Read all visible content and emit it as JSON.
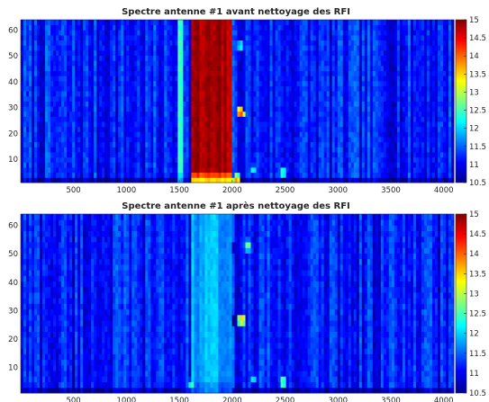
{
  "chart_data": [
    {
      "type": "heatmap",
      "title": "Spectre antenne #1  avant nettoyage des RFI",
      "xlabel": "",
      "ylabel": "",
      "xlim": [
        1,
        4096
      ],
      "ylim": [
        1,
        64
      ],
      "x_ticks": [
        500,
        1000,
        1500,
        2000,
        2500,
        3000,
        3500,
        4000
      ],
      "y_ticks": [
        10,
        20,
        30,
        40,
        50,
        60
      ],
      "colorbar": {
        "colormap": "jet",
        "range": [
          10.5,
          15
        ],
        "ticks": [
          10.5,
          11,
          11.5,
          12,
          12.5,
          13,
          13.5,
          14,
          14.5,
          15
        ]
      },
      "features": [
        {
          "name": "band",
          "x_range": [
            1620,
            1990
          ],
          "level": 14.8
        },
        {
          "name": "band",
          "x_range": [
            1480,
            1540
          ],
          "level": 12.6
        },
        {
          "name": "spot",
          "x": 2080,
          "y": 28,
          "level": 14.2
        },
        {
          "name": "spot",
          "x": 2080,
          "y": 54,
          "level": 12.4
        },
        {
          "name": "spot",
          "x": 2480,
          "y": 5,
          "level": 12.6
        },
        {
          "name": "spot",
          "x": 2040,
          "y": 2,
          "level": 13.8
        },
        {
          "name": "spot",
          "x": 2200,
          "y": 6,
          "level": 12.3
        }
      ]
    },
    {
      "type": "heatmap",
      "title": "Spectre antenne #1  après nettoyage des RFI",
      "xlabel": "",
      "ylabel": "",
      "xlim": [
        1,
        4096
      ],
      "ylim": [
        1,
        64
      ],
      "x_ticks": [
        500,
        1000,
        1500,
        2000,
        2500,
        3000,
        3500,
        4000
      ],
      "y_ticks": [
        10,
        20,
        30,
        40,
        50,
        60
      ],
      "colorbar": {
        "colormap": "jet",
        "range": [
          10.5,
          15
        ],
        "ticks": [
          10.5,
          11,
          11.5,
          12,
          12.5,
          13,
          13.5,
          14,
          14.5,
          15
        ]
      },
      "features": [
        {
          "name": "flattened-band",
          "x_range": [
            1620,
            1990
          ],
          "level": 11.8
        },
        {
          "name": "spot",
          "x": 2090,
          "y": 27,
          "level": 13.6
        },
        {
          "name": "dip",
          "x": 2020,
          "y": 26,
          "level": 10.6
        },
        {
          "name": "spot",
          "x": 2150,
          "y": 53,
          "level": 12.8
        },
        {
          "name": "dip",
          "x": 2020,
          "y": 53,
          "level": 10.8
        },
        {
          "name": "spot",
          "x": 2480,
          "y": 5,
          "level": 12.8
        },
        {
          "name": "spot",
          "x": 1620,
          "y": 4,
          "level": 12.5
        },
        {
          "name": "spot",
          "x": 2200,
          "y": 6,
          "level": 12.2
        }
      ]
    }
  ]
}
